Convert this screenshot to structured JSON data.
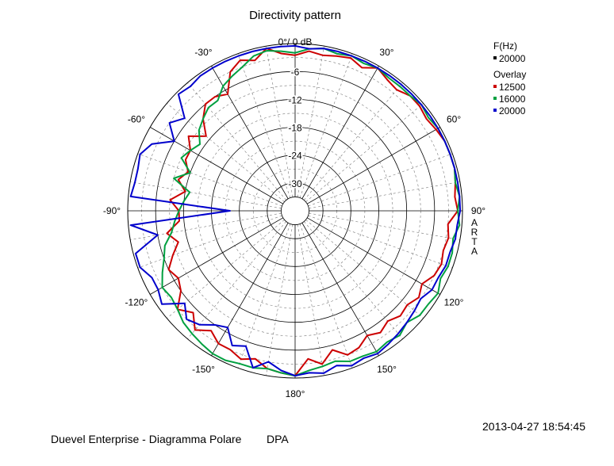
{
  "chart_data": {
    "type": "polar",
    "title": "Directivity pattern",
    "radial_unit": "dB",
    "radial_range": [
      -36,
      0
    ],
    "radial_tick_labels": [
      "0°/ 0 dB",
      "-6",
      "-12",
      "-18",
      "-24",
      "-30"
    ],
    "radial_ticks": [
      0,
      -6,
      -12,
      -18,
      -24,
      -30
    ],
    "angle_labels": [
      {
        "angle": 30,
        "text": "30°"
      },
      {
        "angle": 60,
        "text": "60°"
      },
      {
        "angle": 90,
        "text": "90°"
      },
      {
        "angle": 120,
        "text": "120°"
      },
      {
        "angle": 150,
        "text": "150°"
      },
      {
        "angle": 180,
        "text": "180°"
      },
      {
        "angle": -150,
        "text": "-150°"
      },
      {
        "angle": -120,
        "text": "-120°"
      },
      {
        "angle": -90,
        "text": "-90°"
      },
      {
        "angle": -60,
        "text": "-60°"
      },
      {
        "angle": -30,
        "text": "-30°"
      }
    ],
    "side_label": [
      "A",
      "R",
      "T",
      "A"
    ],
    "legend": {
      "header": "F(Hz)",
      "main_entry": {
        "name": "20000",
        "color": "#000000"
      },
      "overlay_header": "Overlay",
      "overlay_entries": [
        {
          "name": "12500",
          "color": "#cc0000"
        },
        {
          "name": "16000",
          "color": "#00a040"
        },
        {
          "name": "20000",
          "color": "#0000cc"
        }
      ]
    },
    "series": [
      {
        "name": "12500",
        "color": "#cc0000",
        "angles": [
          0,
          5,
          10,
          15,
          20,
          25,
          30,
          35,
          40,
          45,
          50,
          55,
          60,
          65,
          70,
          75,
          80,
          85,
          90,
          95,
          100,
          105,
          110,
          115,
          120,
          125,
          130,
          135,
          140,
          145,
          150,
          155,
          160,
          165,
          170,
          175,
          180,
          -175,
          -170,
          -165,
          -160,
          -155,
          -150,
          -145,
          -140,
          -135,
          -130,
          -125,
          -120,
          -115,
          -110,
          -105,
          -100,
          -95,
          -90,
          -85,
          -80,
          -75,
          -70,
          -65,
          -60,
          -55,
          -50,
          -45,
          -40,
          -35,
          -30,
          -25,
          -20,
          -15,
          -10,
          -5
        ],
        "values": [
          -2.5,
          -1.5,
          -2,
          -1.5,
          -1,
          -2,
          -0.5,
          -1.5,
          -2,
          -1,
          -1,
          -1.5,
          -1,
          -0.5,
          -0.5,
          -0.5,
          -1,
          -1.5,
          -1,
          -3,
          -2.5,
          -3,
          -2.5,
          -3,
          -4.5,
          -3.5,
          -4.5,
          -4,
          -5,
          -4,
          -5,
          -3.5,
          -3,
          -5,
          -2.5,
          -4,
          -0.5,
          -1,
          -1.5,
          -3,
          -2,
          -3,
          -3,
          -4.5,
          -2.5,
          -5,
          -3,
          -6,
          -7,
          -6,
          -8,
          -10,
          -8,
          -11,
          -11,
          -9,
          -12,
          -10,
          -11.5,
          -10,
          -10,
          -8,
          -11,
          -8,
          -6,
          -6,
          -7,
          -3,
          -1.5,
          -2.5,
          -0.5,
          -2
        ]
      },
      {
        "name": "16000",
        "color": "#00a040",
        "angles": [
          0,
          5,
          10,
          15,
          20,
          25,
          30,
          35,
          40,
          45,
          50,
          55,
          60,
          65,
          70,
          75,
          80,
          85,
          90,
          95,
          100,
          105,
          110,
          115,
          120,
          125,
          130,
          135,
          140,
          145,
          150,
          155,
          160,
          165,
          170,
          175,
          180,
          -175,
          -170,
          -165,
          -160,
          -155,
          -150,
          -145,
          -140,
          -135,
          -130,
          -125,
          -120,
          -115,
          -110,
          -105,
          -100,
          -95,
          -90,
          -85,
          -80,
          -75,
          -70,
          -65,
          -60,
          -55,
          -50,
          -45,
          -40,
          -35,
          -30,
          -25,
          -20,
          -15,
          -10,
          -5
        ],
        "values": [
          -2,
          -1,
          -0.5,
          -1,
          -0.5,
          -1,
          -0.5,
          -1,
          -1,
          -1,
          -0.5,
          -1,
          -0.5,
          -0.5,
          -0.5,
          -0.5,
          -1,
          -0.5,
          -1,
          -0.5,
          -1.5,
          -1,
          -1,
          -1.5,
          -0.5,
          -1,
          -1,
          -2,
          -1,
          -1.5,
          -1,
          -1.5,
          -1.5,
          -2.5,
          -2,
          -1.5,
          -0.5,
          -1,
          -1.5,
          -1,
          -1,
          -0.5,
          -0.5,
          -1,
          -1.5,
          -2,
          -3,
          -3.5,
          -3,
          -4.5,
          -6,
          -7,
          -9,
          -10,
          -11,
          -12,
          -13,
          -9,
          -12,
          -9,
          -10,
          -11,
          -9,
          -8,
          -7,
          -7,
          -5,
          -4,
          -3,
          -1.5,
          -1,
          -1.5
        ]
      },
      {
        "name": "20000",
        "color": "#0000cc",
        "angles": [
          0,
          5,
          10,
          15,
          20,
          25,
          30,
          35,
          40,
          45,
          50,
          55,
          60,
          65,
          70,
          75,
          80,
          85,
          90,
          95,
          100,
          105,
          110,
          115,
          120,
          125,
          130,
          135,
          140,
          145,
          150,
          155,
          160,
          165,
          170,
          175,
          180,
          -175,
          -170,
          -165,
          -160,
          -155,
          -150,
          -145,
          -140,
          -135,
          -130,
          -125,
          -120,
          -115,
          -110,
          -105,
          -100,
          -95,
          -90,
          -85,
          -80,
          -75,
          -70,
          -65,
          -60,
          -55,
          -50,
          -45,
          -40,
          -35,
          -30,
          -25,
          -20,
          -15,
          -10,
          -5
        ],
        "values": [
          -0.5,
          -1,
          -0.5,
          -0.5,
          -0.5,
          -0.5,
          -0.5,
          -0.5,
          -0.5,
          -0.5,
          -0.5,
          -0.5,
          -0.5,
          -0.5,
          -0.5,
          -0.5,
          -0.5,
          -0.5,
          -0.5,
          -1,
          -1,
          -1.5,
          -1.5,
          -2,
          -2,
          -3,
          -2.5,
          -2,
          -1.5,
          -1,
          -0.5,
          -1,
          -0.5,
          -1.5,
          -0.5,
          -1,
          -0.5,
          -1.5,
          -3,
          -1,
          -5,
          -4,
          -7,
          -6,
          -4,
          -3,
          -5,
          -1,
          -2,
          -2,
          -0.5,
          -0.5,
          -6,
          -0.5,
          -22,
          -0.5,
          -1,
          -1,
          -0.5,
          -2,
          -6,
          -3,
          -5,
          -0.5,
          -1,
          -0.5,
          -0.5,
          -0.5,
          -0.5,
          -0.5,
          -0.5,
          -0.5
        ]
      }
    ]
  },
  "footer": {
    "timestamp": "2013-04-27  18:54:45",
    "left_text": "Duevel Enterprise - Diagramma Polare",
    "right_text": "DPA"
  }
}
